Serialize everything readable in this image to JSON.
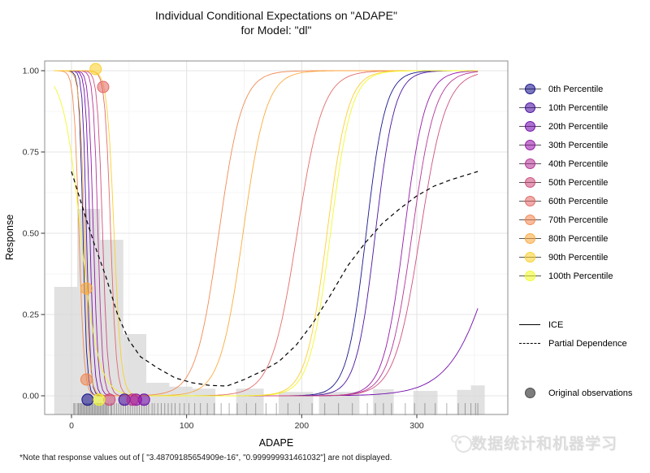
{
  "chart_data": {
    "type": "line",
    "title_line1": "Individual Conditional Expectations on \"ADAPE\"",
    "title_line2": "for Model: \"dl\"",
    "xlabel": "ADAPE",
    "ylabel": "Response",
    "x_ticks": [
      0,
      100,
      200,
      300
    ],
    "x_minor_ticks": [
      50,
      150,
      250,
      350
    ],
    "y_ticks": [
      {
        "v": 0.0,
        "label": "0.00"
      },
      {
        "v": 0.25,
        "label": "0.25"
      },
      {
        "v": 0.5,
        "label": "0.50"
      },
      {
        "v": 0.75,
        "label": "0.75"
      },
      {
        "v": 1.0,
        "label": "1.00"
      }
    ],
    "y_minor_ticks": [
      0.125,
      0.375,
      0.625,
      0.875
    ],
    "x_range_shown": [
      -23,
      379
    ],
    "x_data_range": [
      -15,
      353
    ],
    "y_range_shown": [
      -0.06,
      1.03
    ],
    "ice_curves": [
      {
        "name": "0th Percentile",
        "color": "#0d0887",
        "desc_mid": 10,
        "desc_k": 0.6,
        "asc_mid": 256,
        "asc_k": 0.12
      },
      {
        "name": "10th Percentile",
        "color": "#41049d",
        "desc_mid": 13,
        "desc_k": 0.6,
        "asc_mid": 264,
        "asc_k": 0.12
      },
      {
        "name": "20th Percentile",
        "color": "#6a00a8",
        "desc_mid": 16,
        "desc_k": 0.55,
        "asc_mid": 373,
        "asc_k": 0.05
      },
      {
        "name": "30th Percentile",
        "color": "#8f0da4",
        "desc_mid": 19,
        "desc_k": 0.5,
        "asc_mid": 289,
        "asc_k": 0.11
      },
      {
        "name": "40th Percentile",
        "color": "#b12a90",
        "desc_mid": 23,
        "desc_k": 0.5,
        "asc_mid": 296,
        "asc_k": 0.1
      },
      {
        "name": "50th Percentile",
        "color": "#cc4778",
        "desc_mid": 27,
        "desc_k": 0.45,
        "asc_mid": 303,
        "asc_k": 0.09
      },
      {
        "name": "60th Percentile",
        "color": "#e16462",
        "desc_mid": 34,
        "desc_k": 0.4,
        "asc_mid": 196,
        "asc_k": 0.09
      },
      {
        "name": "70th Percentile",
        "color": "#f2844b",
        "desc_mid": 6.5,
        "desc_k": 0.45,
        "asc_mid": 128,
        "asc_k": 0.1
      },
      {
        "name": "80th Percentile",
        "color": "#fca636",
        "desc_mid": 11.4,
        "desc_k": 0.45,
        "asc_mid": 149,
        "asc_k": 0.1
      },
      {
        "name": "90th Percentile",
        "color": "#fcce25",
        "desc_mid": 37,
        "desc_k": 0.33,
        "asc_mid": 222,
        "asc_k": 0.11
      },
      {
        "name": "100th Percentile",
        "color": "#f0f921",
        "desc_mid": 8,
        "desc_k": 0.13,
        "asc_mid": 225,
        "asc_k": 0.11
      }
    ],
    "partial_dependence_points": [
      [
        0,
        0.69
      ],
      [
        10,
        0.575
      ],
      [
        20,
        0.465
      ],
      [
        30,
        0.365
      ],
      [
        40,
        0.25
      ],
      [
        50,
        0.17
      ],
      [
        60,
        0.12
      ],
      [
        75,
        0.085
      ],
      [
        90,
        0.055
      ],
      [
        105,
        0.04
      ],
      [
        120,
        0.032
      ],
      [
        135,
        0.03
      ],
      [
        150,
        0.05
      ],
      [
        165,
        0.075
      ],
      [
        180,
        0.105
      ],
      [
        195,
        0.155
      ],
      [
        210,
        0.225
      ],
      [
        225,
        0.31
      ],
      [
        240,
        0.4
      ],
      [
        255,
        0.47
      ],
      [
        270,
        0.53
      ],
      [
        285,
        0.575
      ],
      [
        300,
        0.615
      ],
      [
        315,
        0.645
      ],
      [
        330,
        0.665
      ],
      [
        342,
        0.678
      ],
      [
        353,
        0.69
      ]
    ],
    "observations": [
      {
        "name": "0th Percentile",
        "color": "#0d0887",
        "x": 14,
        "y": -0.012
      },
      {
        "name": "10th Percentile",
        "color": "#41049d",
        "x": 46,
        "y": -0.012
      },
      {
        "name": "20th Percentile",
        "color": "#6a00a8",
        "x": 63,
        "y": -0.012
      },
      {
        "name": "30th Percentile",
        "color": "#8f0da4",
        "x": 56,
        "y": -0.012
      },
      {
        "name": "40th Percentile",
        "color": "#b12a90",
        "x": 53,
        "y": -0.012
      },
      {
        "name": "50th Percentile",
        "color": "#cc4778",
        "x": 33,
        "y": -0.012
      },
      {
        "name": "60th Percentile",
        "color": "#e16462",
        "x": 27.5,
        "y": 0.95
      },
      {
        "name": "70th Percentile",
        "color": "#f2844b",
        "x": 13,
        "y": 0.05
      },
      {
        "name": "80th Percentile",
        "color": "#fca636",
        "x": 13,
        "y": 0.33
      },
      {
        "name": "90th Percentile",
        "color": "#fcce25",
        "x": 21,
        "y": 1.005
      },
      {
        "name": "100th Percentile",
        "color": "#f0f921",
        "x": 24,
        "y": -0.012
      }
    ],
    "histogram": [
      {
        "x0": -15,
        "x1": 5,
        "h": 0.335
      },
      {
        "x0": 5,
        "x1": 25,
        "h": 0.575
      },
      {
        "x0": 25,
        "x1": 45,
        "h": 0.48
      },
      {
        "x0": 45,
        "x1": 65,
        "h": 0.19
      },
      {
        "x0": 65,
        "x1": 85,
        "h": 0.04
      },
      {
        "x0": 85,
        "x1": 105,
        "h": 0.028
      },
      {
        "x0": 105,
        "x1": 125,
        "h": 0.022
      },
      {
        "x0": 143,
        "x1": 167,
        "h": 0.022
      },
      {
        "x0": 180,
        "x1": 210,
        "h": 0.012
      },
      {
        "x0": 215,
        "x1": 250,
        "h": 0.012
      },
      {
        "x0": 262,
        "x1": 280,
        "h": 0.02
      },
      {
        "x0": 297,
        "x1": 318,
        "h": 0.015
      },
      {
        "x0": 335,
        "x1": 347,
        "h": 0.018
      },
      {
        "x0": 347,
        "x1": 359,
        "h": 0.032
      }
    ],
    "rug_x": [
      2,
      3,
      5,
      6,
      7,
      8,
      9,
      10,
      11,
      12,
      13,
      14,
      15,
      16,
      17,
      18,
      19,
      20,
      21,
      22,
      23,
      24,
      25,
      26,
      27,
      28,
      29,
      30,
      31,
      32,
      34,
      35,
      37,
      39,
      41,
      43,
      45,
      47,
      49,
      51,
      53,
      55,
      57,
      59,
      61,
      63,
      65,
      67,
      70,
      72,
      75,
      78,
      81,
      84,
      87,
      90,
      94,
      98,
      102,
      107,
      112,
      118,
      124,
      130,
      137,
      144,
      152,
      160,
      169,
      178,
      188,
      198,
      209,
      220,
      232,
      244,
      257,
      264,
      271,
      278,
      290,
      298,
      307,
      316,
      326,
      336,
      342,
      347,
      351,
      353
    ]
  },
  "legend": {
    "percentiles": [
      "0th Percentile",
      "10th Percentile",
      "20th Percentile",
      "30th Percentile",
      "40th Percentile",
      "50th Percentile",
      "60th Percentile",
      "70th Percentile",
      "80th Percentile",
      "90th Percentile",
      "100th Percentile"
    ],
    "colors": [
      "#0d0887",
      "#41049d",
      "#6a00a8",
      "#8f0da4",
      "#b12a90",
      "#cc4778",
      "#e16462",
      "#f2844b",
      "#fca636",
      "#fcce25",
      "#f0f921"
    ],
    "ice_label": "ICE",
    "pd_label": "Partial Dependence",
    "obs_label": "Original observations"
  },
  "footnote": "*Note that response values out of [ \"3.48709185654909e-16\",  \"0.999999931461032\"] are not displayed.",
  "watermark_text": "数据统计和机器学习",
  "style_colors": {
    "grid_major": "#e4e4e4",
    "grid_minor": "#f2f2f2",
    "panel_border": "#8c8c8c",
    "hist_fill": "#d9d9d9",
    "rug": "#2a2a2a",
    "pd_line": "#000000",
    "tick_text": "#303030"
  }
}
